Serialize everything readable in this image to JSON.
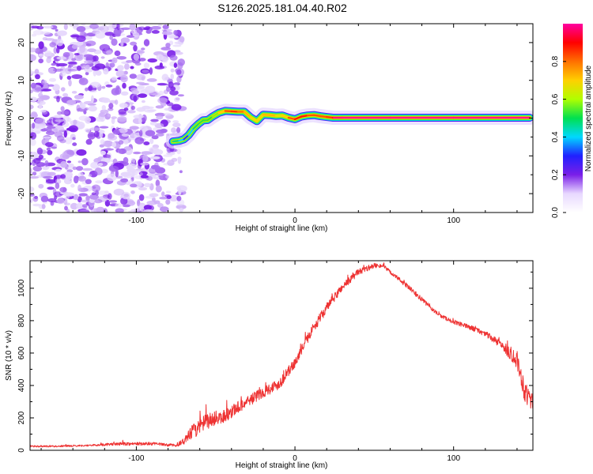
{
  "title": "S126.2025.181.04.40.R02",
  "chart_data": [
    {
      "type": "heatmap",
      "panel": "spectrogram",
      "xlabel": "Height of straight line (km)",
      "ylabel": "Frequency (Hz)",
      "xlim": [
        -167,
        150
      ],
      "ylim": [
        -25,
        25
      ],
      "xticks": [
        -100,
        0,
        100
      ],
      "yticks": [
        -20,
        -10,
        0,
        10,
        20
      ],
      "colorbar": {
        "label": "Normalized spectral amplitude",
        "range": [
          0,
          1
        ],
        "ticks": [
          0.0,
          0.2,
          0.4,
          0.6,
          0.8
        ],
        "colormap": [
          "#ffffff",
          "#e8d8ff",
          "#7a1fe8",
          "#2020ff",
          "#00d8ff",
          "#00e050",
          "#b0ff00",
          "#ffd000",
          "#ff7000",
          "#ff0000",
          "#ff00a0"
        ]
      },
      "noise_region_x": [
        -167,
        -75
      ],
      "ridge": {
        "x": [
          -77,
          -73,
          -70,
          -67,
          -64,
          -61,
          -58,
          -55,
          -52,
          -48,
          -44,
          -40,
          -36,
          -32,
          -28,
          -24,
          -20,
          -16,
          -12,
          -8,
          -4,
          0,
          4,
          8,
          12,
          16,
          20,
          24,
          30,
          60,
          100,
          148
        ],
        "freq": [
          -6.2,
          -6.0,
          -5.6,
          -4.5,
          -2.8,
          -1.6,
          -0.6,
          -0.5,
          0.4,
          1.4,
          1.9,
          1.8,
          1.7,
          1.7,
          0.2,
          -0.8,
          0.9,
          0.8,
          0.6,
          0.7,
          0.1,
          -0.3,
          0.4,
          0.7,
          0.8,
          0.5,
          0.3,
          0.1,
          0.1,
          0.1,
          0.1,
          0.1
        ],
        "amp": [
          0.45,
          0.5,
          0.3,
          0.35,
          0.45,
          0.5,
          0.55,
          0.5,
          0.55,
          0.6,
          0.8,
          0.85,
          0.85,
          0.75,
          0.7,
          0.65,
          0.7,
          0.75,
          0.7,
          0.6,
          0.8,
          0.85,
          0.9,
          0.85,
          0.8,
          0.85,
          0.8,
          0.9,
          0.95,
          0.95,
          0.95,
          0.95
        ]
      }
    },
    {
      "type": "line",
      "panel": "snr",
      "xlabel": "Height of straight line (km)",
      "ylabel": "SNR (10 * v/v)",
      "xlim": [
        -167,
        150
      ],
      "ylim": [
        0,
        1170
      ],
      "xticks": [
        -100,
        0,
        100
      ],
      "yticks": [
        0,
        200,
        400,
        600,
        800,
        1000
      ],
      "series": [
        {
          "color": "#ee3333",
          "x": [
            -167,
            -150,
            -130,
            -110,
            -90,
            -75,
            -70,
            -65,
            -60,
            -55,
            -50,
            -45,
            -40,
            -30,
            -20,
            -10,
            0,
            10,
            20,
            30,
            40,
            50,
            55,
            60,
            70,
            80,
            90,
            100,
            110,
            120,
            130,
            140,
            145,
            150
          ],
          "y": [
            25,
            25,
            30,
            40,
            40,
            30,
            55,
            110,
            150,
            180,
            200,
            210,
            240,
            300,
            360,
            410,
            540,
            730,
            880,
            1010,
            1100,
            1140,
            1140,
            1100,
            1020,
            930,
            840,
            790,
            760,
            720,
            650,
            560,
            360,
            300
          ],
          "noise": [
            5,
            5,
            5,
            10,
            10,
            8,
            20,
            45,
            50,
            50,
            45,
            45,
            40,
            35,
            35,
            35,
            30,
            30,
            30,
            25,
            20,
            15,
            12,
            12,
            15,
            15,
            12,
            12,
            15,
            18,
            25,
            55,
            70,
            60
          ]
        }
      ]
    }
  ]
}
